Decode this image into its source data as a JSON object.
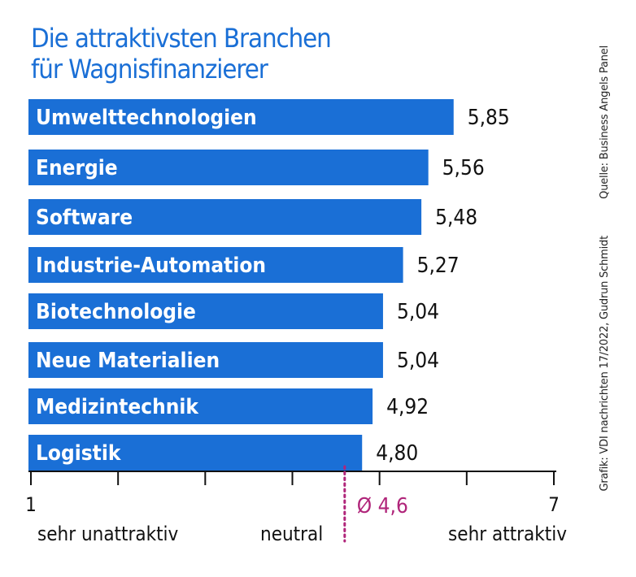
{
  "header": {
    "title_line1": "Die attraktivsten Branchen",
    "title_line2": "für Wagnisfinanzierer"
  },
  "source": "Quelle: Business Angels Panel",
  "credit": "Grafik: VDI nachrichten 17/2022, Gudrun Schmidt",
  "colors": {
    "bar": "#1a6fd6",
    "title": "#1a6fd6",
    "average": "#b0257a"
  },
  "chart_data": {
    "type": "bar",
    "orientation": "horizontal",
    "categories": [
      "Umwelttechnologien",
      "Energie",
      "Software",
      "Industrie-Automation",
      "Biotechnologie",
      "Neue Materialien",
      "Medizintechnik",
      "Logistik"
    ],
    "values": [
      5.85,
      5.56,
      5.48,
      5.27,
      5.04,
      5.04,
      4.92,
      4.8
    ],
    "value_labels": [
      "5,85",
      "5,56",
      "5,48",
      "5,27",
      "5,04",
      "5,04",
      "4,92",
      "4,80"
    ],
    "xlim": [
      1,
      7
    ],
    "ticks": [
      1,
      2,
      3,
      4,
      5,
      6,
      7
    ],
    "tick_labels": {
      "min": "1",
      "max": "7"
    },
    "scale_labels": [
      "sehr unattraktiv",
      "neutral",
      "sehr attraktiv"
    ],
    "average": {
      "value": 4.6,
      "label": "Ø 4,6"
    }
  }
}
